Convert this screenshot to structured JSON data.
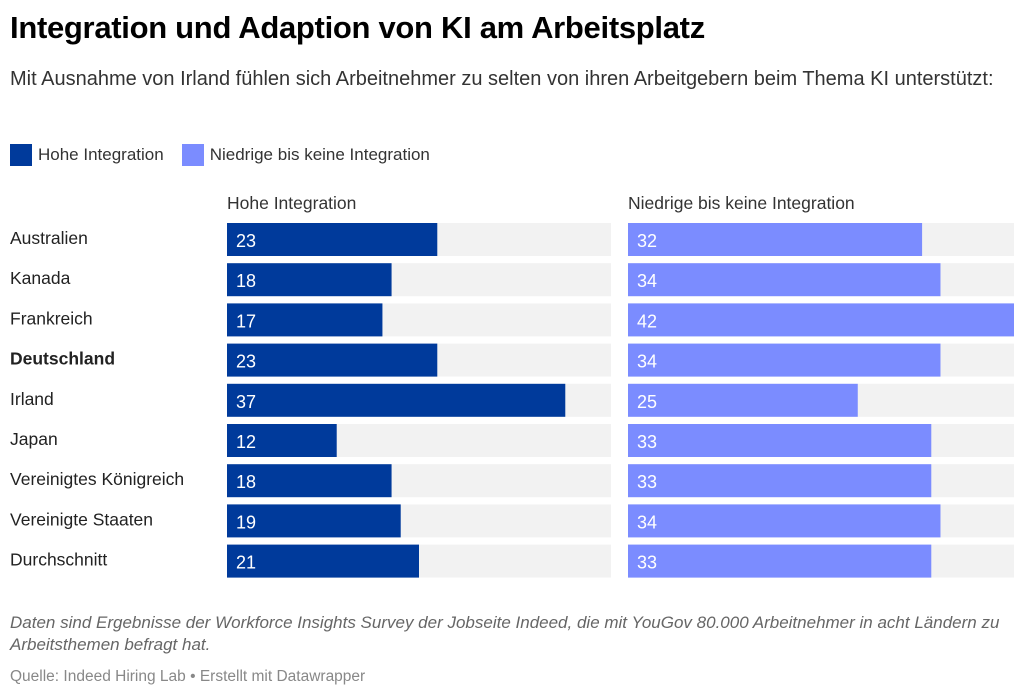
{
  "title": "Integration und Adaption von KI am Arbeitsplatz",
  "subtitle": "Mit Ausnahme von Irland fühlen sich Arbeitnehmer zu selten von ihren Arbeitgebern beim Thema KI unterstützt:",
  "legend": [
    {
      "label": "Hohe Integration",
      "color": "#003a9b"
    },
    {
      "label": "Niedrige bis keine Integration",
      "color": "#7b8cff"
    }
  ],
  "chart_data": {
    "type": "bar",
    "orientation": "horizontal",
    "layout": "split-bars",
    "categories": [
      "Australien",
      "Kanada",
      "Frankreich",
      "Deutschland",
      "Irland",
      "Japan",
      "Vereinigtes Königreich",
      "Vereinigte Staaten",
      "Durchschnitt"
    ],
    "highlighted_category": "Deutschland",
    "series": [
      {
        "name": "Hohe Integration",
        "color": "#003a9b",
        "values": [
          23,
          18,
          17,
          23,
          37,
          12,
          18,
          19,
          21
        ]
      },
      {
        "name": "Niedrige bis keine Integration",
        "color": "#7b8cff",
        "values": [
          32,
          34,
          42,
          34,
          25,
          33,
          33,
          34,
          33
        ]
      }
    ],
    "xlim": [
      0,
      42
    ],
    "track_color": "#f2f2f2",
    "grid": false,
    "legend_position": "top-left"
  },
  "notes": "Daten sind Ergebnisse der Workforce Insights Survey der Jobseite Indeed, die mit YouGov 80.000 Arbeitnehmer in acht Ländern zu Arbeitsthemen befragt hat.",
  "source": "Quelle: Indeed Hiring Lab • Erstellt mit Datawrapper"
}
